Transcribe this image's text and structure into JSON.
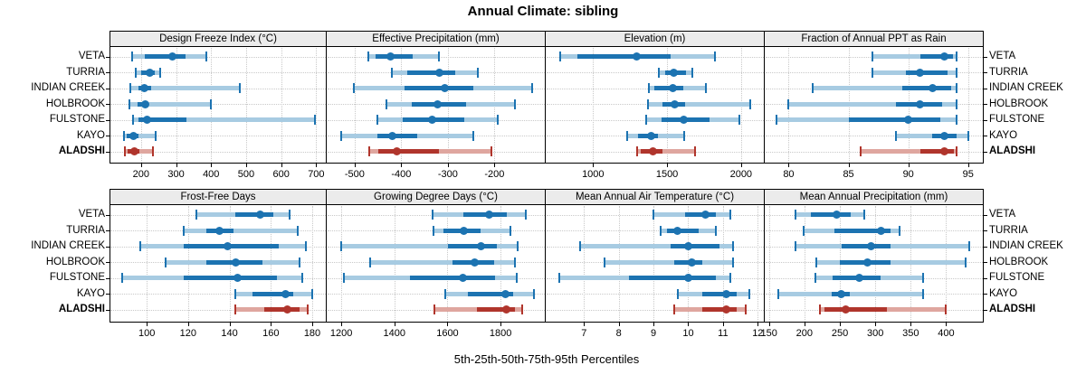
{
  "title": "Annual Climate: sibling",
  "footer_label": "5th-25th-50th-75th-95th Percentiles",
  "sites": [
    "VETA",
    "TURRIA",
    "INDIAN CREEK",
    "HOLBROOK",
    "FULSTONE",
    "KAYO",
    "ALADSHI"
  ],
  "highlight_site": "ALADSHI",
  "colors": {
    "blue": "#1C73B1",
    "blue_light": "#A7CBE2",
    "red": "#B0352C",
    "red_light": "#DFA69F",
    "header_bg": "#EBEBEB",
    "grid": "#C9C9C9",
    "border": "#000000"
  },
  "chart_data": {
    "type": "percentile-range-dotplot",
    "percentile_labels": [
      "5th",
      "25th",
      "50th",
      "75th",
      "95th"
    ],
    "grid": true,
    "layout_note": "2 rows x 4 columns of panels; sites listed top to bottom on both sides",
    "panels": [
      {
        "title": "Design Freeze Index (°C)",
        "grid_row": 0,
        "grid_col": 0,
        "xlim": [
          110,
          730
        ],
        "ticks": [
          200,
          300,
          400,
          500,
          600,
          700
        ],
        "series": [
          {
            "site": "VETA",
            "percentiles": [
              174,
              211,
              290,
              327,
              386
            ]
          },
          {
            "site": "TURRIA",
            "percentiles": [
              184,
              200,
              224,
              240,
              254
            ]
          },
          {
            "site": "INDIAN CREEK",
            "percentiles": [
              169,
              192,
              209,
              228,
              481
            ]
          },
          {
            "site": "HOLBROOK",
            "percentiles": [
              166,
              190,
              211,
              222,
              400
            ]
          },
          {
            "site": "FULSTONE",
            "percentiles": [
              177,
              193,
              216,
              330,
              697
            ]
          },
          {
            "site": "KAYO",
            "percentiles": [
              151,
              160,
              179,
              192,
              241
            ]
          },
          {
            "site": "ALADSHI",
            "percentiles": [
              153,
              161,
              180,
              196,
              233
            ]
          }
        ]
      },
      {
        "title": "Effective Precipitation (mm)",
        "grid_row": 0,
        "grid_col": 1,
        "xlim": [
          -560,
          -90
        ],
        "ticks": [
          -500,
          -400,
          -300,
          -200
        ],
        "series": [
          {
            "site": "VETA",
            "percentiles": [
              -470,
              -455,
              -424,
              -375,
              -320
            ]
          },
          {
            "site": "TURRIA",
            "percentiles": [
              -421,
              -387,
              -319,
              -284,
              -236
            ]
          },
          {
            "site": "INDIAN CREEK",
            "percentiles": [
              -501,
              -393,
              -307,
              -245,
              -120
            ]
          },
          {
            "site": "HOLBROOK",
            "percentiles": [
              -432,
              -378,
              -323,
              -261,
              -156
            ]
          },
          {
            "site": "FULSTONE",
            "percentiles": [
              -452,
              -397,
              -333,
              -265,
              -192
            ]
          },
          {
            "site": "KAYO",
            "percentiles": [
              -528,
              -452,
              -419,
              -365,
              -245
            ]
          },
          {
            "site": "ALADSHI",
            "percentiles": [
              -468,
              -449,
              -410,
              -319,
              -207
            ]
          }
        ]
      },
      {
        "title": "Elevation (m)",
        "grid_row": 0,
        "grid_col": 2,
        "xlim": [
          680,
          2160
        ],
        "ticks": [
          1000,
          1500,
          2000
        ],
        "series": [
          {
            "site": "VETA",
            "percentiles": [
              775,
              895,
              1295,
              1525,
              1825
            ]
          },
          {
            "site": "TURRIA",
            "percentiles": [
              1445,
              1490,
              1545,
              1625,
              1670
            ]
          },
          {
            "site": "INDIAN CREEK",
            "percentiles": [
              1375,
              1415,
              1540,
              1610,
              1760
            ]
          },
          {
            "site": "HOLBROOK",
            "percentiles": [
              1370,
              1470,
              1550,
              1620,
              2065
            ]
          },
          {
            "site": "FULSTONE",
            "percentiles": [
              1360,
              1465,
              1610,
              1790,
              1990
            ]
          },
          {
            "site": "KAYO",
            "percentiles": [
              1230,
              1305,
              1395,
              1440,
              1615
            ]
          },
          {
            "site": "ALADSHI",
            "percentiles": [
              1300,
              1325,
              1405,
              1470,
              1690
            ]
          }
        ]
      },
      {
        "title": "Fraction of Annual PPT as Rain",
        "grid_row": 0,
        "grid_col": 3,
        "xlim": [
          78,
          96.3
        ],
        "ticks": [
          80,
          85,
          90,
          95
        ],
        "series": [
          {
            "site": "VETA",
            "percentiles": [
              87,
              91,
              93,
              93.7,
              94
            ]
          },
          {
            "site": "TURRIA",
            "percentiles": [
              87,
              89.8,
              91,
              93.3,
              94
            ]
          },
          {
            "site": "INDIAN CREEK",
            "percentiles": [
              82,
              89.5,
              92,
              93.6,
              94
            ]
          },
          {
            "site": "HOLBROOK",
            "percentiles": [
              80,
              89,
              91,
              92.8,
              94
            ]
          },
          {
            "site": "FULSTONE",
            "percentiles": [
              79,
              85,
              90,
              92.7,
              94
            ]
          },
          {
            "site": "KAYO",
            "percentiles": [
              89,
              92,
              93,
              94,
              95
            ]
          },
          {
            "site": "ALADSHI",
            "percentiles": [
              86,
              91,
              93,
              93.8,
              94
            ]
          }
        ]
      },
      {
        "title": "Frost-Free Days",
        "grid_row": 1,
        "grid_col": 0,
        "xlim": [
          82,
          187
        ],
        "ticks": [
          100,
          120,
          140,
          160,
          180
        ],
        "series": [
          {
            "site": "VETA",
            "percentiles": [
              124,
              143,
              155,
              161,
              169
            ]
          },
          {
            "site": "TURRIA",
            "percentiles": [
              118,
              129,
              135,
              142,
              173
            ]
          },
          {
            "site": "INDIAN CREEK",
            "percentiles": [
              97,
              118,
              139,
              164,
              177
            ]
          },
          {
            "site": "HOLBROOK",
            "percentiles": [
              109,
              129,
              143,
              156,
              174
            ]
          },
          {
            "site": "FULSTONE",
            "percentiles": [
              88,
              118,
              144,
              163,
              175
            ]
          },
          {
            "site": "KAYO",
            "percentiles": [
              143,
              151,
              167,
              171,
              180
            ]
          },
          {
            "site": "ALADSHI",
            "percentiles": [
              143,
              157,
              168,
              174,
              178
            ]
          }
        ]
      },
      {
        "title": "Growing Degree Days (°C)",
        "grid_row": 1,
        "grid_col": 1,
        "xlim": [
          1145,
          1970
        ],
        "ticks": [
          1200,
          1400,
          1600,
          1800
        ],
        "series": [
          {
            "site": "VETA",
            "percentiles": [
              1545,
              1660,
              1757,
              1825,
              1895
            ]
          },
          {
            "site": "TURRIA",
            "percentiles": [
              1547,
              1586,
              1660,
              1723,
              1836
            ]
          },
          {
            "site": "INDIAN CREEK",
            "percentiles": [
              1200,
              1603,
              1725,
              1785,
              1865
            ]
          },
          {
            "site": "HOLBROOK",
            "percentiles": [
              1310,
              1620,
              1703,
              1774,
              1853
            ]
          },
          {
            "site": "FULSTONE",
            "percentiles": [
              1210,
              1457,
              1657,
              1780,
              1862
            ]
          },
          {
            "site": "KAYO",
            "percentiles": [
              1590,
              1677,
              1817,
              1848,
              1925
            ]
          },
          {
            "site": "ALADSHI",
            "percentiles": [
              1552,
              1711,
              1822,
              1853,
              1880
            ]
          }
        ]
      },
      {
        "title": "Mean Annual Air Temperature (°C)",
        "grid_row": 1,
        "grid_col": 2,
        "xlim": [
          5.9,
          12.2
        ],
        "ticks": [
          7,
          8,
          9,
          10,
          11,
          12
        ],
        "series": [
          {
            "site": "VETA",
            "percentiles": [
              9.0,
              9.9,
              10.5,
              10.8,
              11.2
            ]
          },
          {
            "site": "TURRIA",
            "percentiles": [
              9.2,
              9.4,
              9.7,
              10.3,
              10.8
            ]
          },
          {
            "site": "INDIAN CREEK",
            "percentiles": [
              6.9,
              9.5,
              10.0,
              10.9,
              11.3
            ]
          },
          {
            "site": "HOLBROOK",
            "percentiles": [
              7.6,
              9.6,
              10.1,
              10.4,
              11.3
            ]
          },
          {
            "site": "FULSTONE",
            "percentiles": [
              6.3,
              8.3,
              10.0,
              10.8,
              11.2
            ]
          },
          {
            "site": "KAYO",
            "percentiles": [
              9.7,
              10.4,
              11.1,
              11.4,
              11.75
            ]
          },
          {
            "site": "ALADSHI",
            "percentiles": [
              9.6,
              10.4,
              11.1,
              11.4,
              11.65
            ]
          }
        ]
      },
      {
        "title": "Mean Annual Precipitation (mm)",
        "grid_row": 1,
        "grid_col": 3,
        "xlim": [
          144,
          453
        ],
        "ticks": [
          150,
          200,
          250,
          300,
          350,
          400
        ],
        "series": [
          {
            "site": "VETA",
            "percentiles": [
              188,
              209,
              246,
              265,
              285
            ]
          },
          {
            "site": "TURRIA",
            "percentiles": [
              199,
              242,
              308,
              322,
              334
            ]
          },
          {
            "site": "INDIAN CREEK",
            "percentiles": [
              187,
              253,
              294,
              322,
              433
            ]
          },
          {
            "site": "HOLBROOK",
            "percentiles": [
              217,
              250,
              289,
              322,
              428
            ]
          },
          {
            "site": "FULSTONE",
            "percentiles": [
              215,
              240,
              277,
              308,
              368
            ]
          },
          {
            "site": "KAYO",
            "percentiles": [
              163,
              238,
              252,
              264,
              367
            ]
          },
          {
            "site": "ALADSHI",
            "percentiles": [
              222,
              228,
              258,
              316,
              399
            ]
          }
        ]
      }
    ]
  }
}
